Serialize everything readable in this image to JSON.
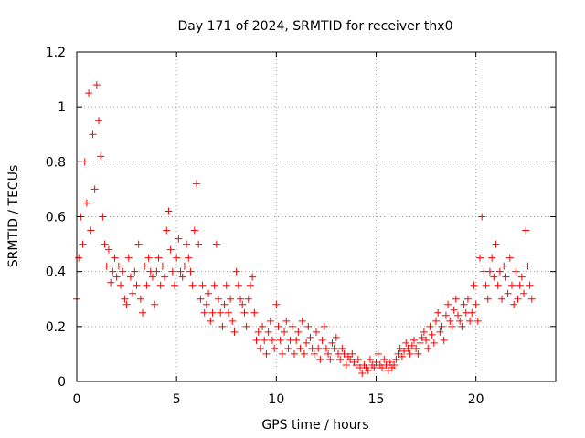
{
  "chart_data": {
    "type": "scatter",
    "title": "Day 171 of 2024, SRMTID for receiver thx0",
    "xlabel": "GPS time / hours",
    "ylabel": "SRMTID / TECUs",
    "xlim": [
      0,
      24
    ],
    "ylim": [
      0,
      1.2
    ],
    "xticks": [
      0,
      5,
      10,
      15,
      20
    ],
    "xtick_labels": [
      "0",
      "5",
      "10",
      "15",
      "20"
    ],
    "yticks": [
      0,
      0.2,
      0.4,
      0.6,
      0.8,
      1.0,
      1.2
    ],
    "ytick_labels": [
      "0",
      "0.2",
      "0.4",
      "0.6",
      "0.8",
      "1",
      "1.2"
    ],
    "grid": true,
    "marker": "+",
    "color": "#ff0000",
    "series": [
      {
        "name": "thx0",
        "x": [
          0.0,
          0.1,
          0.2,
          0.3,
          0.4,
          0.5,
          0.6,
          0.7,
          0.8,
          0.9,
          1.0,
          1.1,
          1.2,
          1.3,
          1.4,
          1.5,
          1.6,
          1.7,
          1.8,
          1.9,
          2.0,
          2.1,
          2.2,
          2.3,
          2.4,
          2.5,
          2.6,
          2.7,
          2.8,
          2.9,
          3.0,
          3.1,
          3.2,
          3.3,
          3.4,
          3.5,
          3.6,
          3.7,
          3.8,
          3.9,
          4.0,
          4.1,
          4.2,
          4.3,
          4.4,
          4.5,
          4.6,
          4.7,
          4.8,
          4.9,
          5.0,
          5.1,
          5.2,
          5.3,
          5.4,
          5.5,
          5.6,
          5.7,
          5.8,
          5.9,
          6.0,
          6.1,
          6.2,
          6.3,
          6.4,
          6.5,
          6.6,
          6.7,
          6.8,
          6.9,
          7.0,
          7.1,
          7.2,
          7.3,
          7.4,
          7.5,
          7.6,
          7.7,
          7.8,
          7.9,
          8.0,
          8.1,
          8.2,
          8.3,
          8.4,
          8.5,
          8.6,
          8.7,
          8.8,
          8.9,
          9.0,
          9.1,
          9.2,
          9.3,
          9.4,
          9.5,
          9.6,
          9.7,
          9.8,
          9.9,
          10.0,
          10.1,
          10.2,
          10.3,
          10.4,
          10.5,
          10.6,
          10.7,
          10.8,
          10.9,
          11.0,
          11.1,
          11.2,
          11.3,
          11.4,
          11.5,
          11.6,
          11.7,
          11.8,
          11.9,
          12.0,
          12.1,
          12.2,
          12.3,
          12.4,
          12.5,
          12.6,
          12.7,
          12.8,
          12.9,
          13.0,
          13.1,
          13.2,
          13.3,
          13.4,
          13.5,
          13.6,
          13.7,
          13.8,
          13.9,
          14.0,
          14.1,
          14.2,
          14.3,
          14.4,
          14.5,
          14.6,
          14.7,
          14.8,
          14.9,
          15.0,
          15.1,
          15.2,
          15.3,
          15.4,
          15.5,
          15.6,
          15.7,
          15.8,
          15.9,
          16.0,
          16.1,
          16.2,
          16.3,
          16.4,
          16.5,
          16.6,
          16.7,
          16.8,
          16.9,
          17.0,
          17.1,
          17.2,
          17.3,
          17.4,
          17.5,
          17.6,
          17.7,
          17.8,
          17.9,
          18.0,
          18.1,
          18.2,
          18.3,
          18.4,
          18.5,
          18.6,
          18.7,
          18.8,
          18.9,
          19.0,
          19.1,
          19.2,
          19.3,
          19.4,
          19.5,
          19.6,
          19.7,
          19.8,
          19.9,
          20.0,
          20.1,
          20.2,
          20.3,
          20.4,
          20.5,
          20.6,
          20.7,
          20.8,
          20.9,
          21.0,
          21.1,
          21.2,
          21.3,
          21.4,
          21.5,
          21.6,
          21.7,
          21.8,
          21.9,
          22.0,
          22.1,
          22.2,
          22.3,
          22.4,
          22.5,
          22.6,
          22.7,
          22.8
        ],
        "y": [
          0.3,
          0.45,
          0.6,
          0.5,
          0.8,
          0.65,
          1.05,
          0.55,
          0.9,
          0.7,
          1.08,
          0.95,
          0.82,
          0.6,
          0.5,
          0.42,
          0.48,
          0.36,
          0.4,
          0.45,
          0.38,
          0.42,
          0.35,
          0.4,
          0.3,
          0.28,
          0.45,
          0.38,
          0.32,
          0.4,
          0.35,
          0.5,
          0.3,
          0.25,
          0.42,
          0.35,
          0.45,
          0.4,
          0.38,
          0.28,
          0.4,
          0.45,
          0.35,
          0.42,
          0.38,
          0.55,
          0.62,
          0.48,
          0.4,
          0.35,
          0.45,
          0.52,
          0.4,
          0.38,
          0.42,
          0.5,
          0.45,
          0.4,
          0.35,
          0.55,
          0.72,
          0.5,
          0.3,
          0.35,
          0.25,
          0.28,
          0.32,
          0.22,
          0.25,
          0.35,
          0.5,
          0.3,
          0.25,
          0.2,
          0.28,
          0.35,
          0.25,
          0.3,
          0.22,
          0.18,
          0.4,
          0.35,
          0.3,
          0.28,
          0.25,
          0.2,
          0.3,
          0.35,
          0.38,
          0.25,
          0.15,
          0.18,
          0.12,
          0.2,
          0.15,
          0.1,
          0.18,
          0.22,
          0.15,
          0.12,
          0.28,
          0.2,
          0.15,
          0.1,
          0.18,
          0.22,
          0.12,
          0.15,
          0.2,
          0.1,
          0.15,
          0.18,
          0.12,
          0.22,
          0.1,
          0.14,
          0.2,
          0.16,
          0.12,
          0.1,
          0.18,
          0.12,
          0.08,
          0.15,
          0.2,
          0.12,
          0.1,
          0.08,
          0.14,
          0.12,
          0.16,
          0.1,
          0.08,
          0.12,
          0.1,
          0.06,
          0.09,
          0.08,
          0.1,
          0.07,
          0.06,
          0.08,
          0.05,
          0.03,
          0.06,
          0.05,
          0.04,
          0.08,
          0.06,
          0.05,
          0.07,
          0.1,
          0.06,
          0.05,
          0.08,
          0.06,
          0.04,
          0.07,
          0.05,
          0.06,
          0.08,
          0.1,
          0.12,
          0.09,
          0.11,
          0.14,
          0.12,
          0.1,
          0.13,
          0.15,
          0.12,
          0.1,
          0.14,
          0.16,
          0.18,
          0.15,
          0.12,
          0.2,
          0.17,
          0.14,
          0.22,
          0.25,
          0.18,
          0.2,
          0.15,
          0.24,
          0.28,
          0.22,
          0.2,
          0.26,
          0.3,
          0.24,
          0.22,
          0.2,
          0.28,
          0.25,
          0.3,
          0.22,
          0.25,
          0.35,
          0.28,
          0.22,
          0.45,
          0.6,
          0.4,
          0.35,
          0.3,
          0.4,
          0.45,
          0.38,
          0.5,
          0.35,
          0.4,
          0.3,
          0.42,
          0.38,
          0.32,
          0.45,
          0.35,
          0.28,
          0.4,
          0.3,
          0.35,
          0.38,
          0.32,
          0.55,
          0.42,
          0.35,
          0.3
        ]
      }
    ]
  }
}
